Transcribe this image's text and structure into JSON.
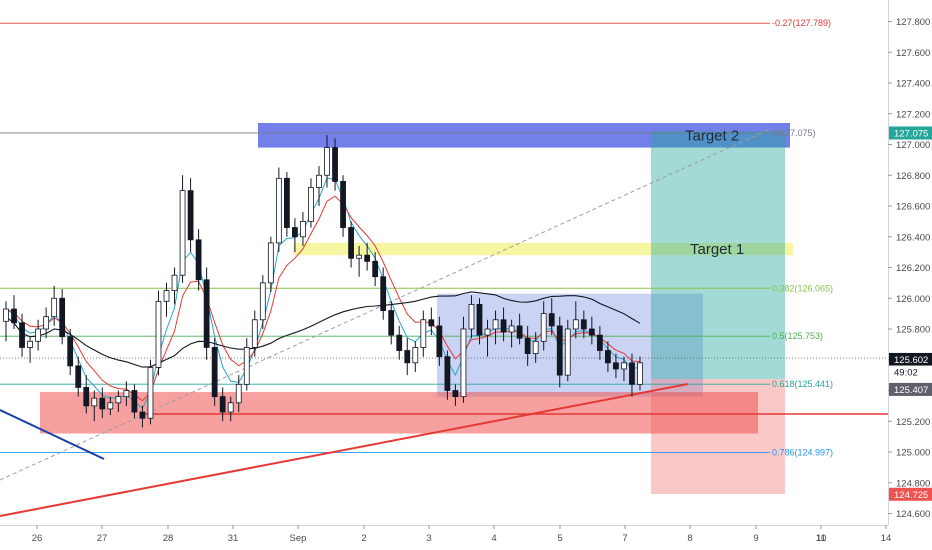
{
  "chart_data": {
    "type": "candlestick",
    "y_axis": {
      "position": "right",
      "ylim": [
        124.5,
        127.95
      ],
      "ticks": [
        "127.800",
        "127.600",
        "127.400",
        "127.200",
        "127.000",
        "126.800",
        "126.600",
        "126.400",
        "126.200",
        "126.000",
        "125.800",
        "125.600",
        "125.400",
        "125.200",
        "125.000",
        "124.800",
        "124.600"
      ],
      "tick_values": [
        127.8,
        127.6,
        127.4,
        127.2,
        127.0,
        126.8,
        126.6,
        126.4,
        126.2,
        126.0,
        125.8,
        125.6,
        125.4,
        125.2,
        125.0,
        124.8,
        124.6
      ]
    },
    "x_axis": {
      "tick_labels": [
        "26",
        "27",
        "28",
        "31",
        "Sep",
        "2",
        "3",
        "4",
        "5",
        "7",
        "8",
        "9",
        "10",
        "11",
        "14"
      ]
    },
    "price_badges": [
      {
        "text": "127.075",
        "value": 127.075,
        "color": "#26a69a",
        "text_color": "#ffffff"
      },
      {
        "text": "125.602",
        "value": 125.602,
        "color": "#131722",
        "text_color": "#ffffff"
      },
      {
        "text": "49:02",
        "value": 125.52,
        "color": "#ffffff",
        "text_color": "#131722"
      },
      {
        "text": "125.407",
        "value": 125.407,
        "color": "#5d606b",
        "text_color": "#ffffff"
      },
      {
        "text": "124.725",
        "value": 124.725,
        "color": "#ef5350",
        "text_color": "#ffffff"
      }
    ],
    "fib_levels": [
      {
        "label": "-0.27(127.789)",
        "value": 127.789,
        "color": "#e53935"
      },
      {
        "label": "0(127.075)",
        "value": 127.075,
        "color": "#787b86"
      },
      {
        "label": "0.382(126.065)",
        "value": 126.065,
        "color": "#8bc34a"
      },
      {
        "label": "0.5(125.753)",
        "value": 125.753,
        "color": "#4caf50"
      },
      {
        "label": "0.618(125.441)",
        "value": 125.441,
        "color": "#26a69a"
      },
      {
        "label": "0.786(124.997)",
        "value": 124.997,
        "color": "#2196f3"
      }
    ],
    "zones": [
      {
        "label": "Target 2",
        "low": 126.98,
        "high": 127.14,
        "color": "#3d4fe0"
      },
      {
        "label": "Target 1",
        "low": 126.28,
        "high": 126.36,
        "color": "#eeee55"
      },
      {
        "label": "",
        "low": 125.36,
        "high": 126.03,
        "color": "#8c9ee6"
      },
      {
        "label": "",
        "low": 125.12,
        "high": 125.39,
        "color": "#ef5350"
      }
    ],
    "current_price": 125.602,
    "candles": [
      [
        125.85,
        125.98,
        125.72,
        125.93
      ],
      [
        125.93,
        126.02,
        125.8,
        125.84
      ],
      [
        125.84,
        125.9,
        125.62,
        125.68
      ],
      [
        125.68,
        125.75,
        125.58,
        125.72
      ],
      [
        125.72,
        125.86,
        125.66,
        125.8
      ],
      [
        125.8,
        125.94,
        125.74,
        125.88
      ],
      [
        125.88,
        126.08,
        125.82,
        126.0
      ],
      [
        126.0,
        126.06,
        125.7,
        125.75
      ],
      [
        125.75,
        125.8,
        125.5,
        125.56
      ],
      [
        125.56,
        125.62,
        125.36,
        125.42
      ],
      [
        125.42,
        125.5,
        125.25,
        125.3
      ],
      [
        125.3,
        125.4,
        125.2,
        125.35
      ],
      [
        125.35,
        125.42,
        125.22,
        125.28
      ],
      [
        125.28,
        125.36,
        125.24,
        125.32
      ],
      [
        125.32,
        125.4,
        125.26,
        125.36
      ],
      [
        125.36,
        125.46,
        125.3,
        125.4
      ],
      [
        125.4,
        125.44,
        125.22,
        125.26
      ],
      [
        125.26,
        125.3,
        125.16,
        125.22
      ],
      [
        125.22,
        125.6,
        125.18,
        125.55
      ],
      [
        125.55,
        126.05,
        125.5,
        125.98
      ],
      [
        125.98,
        126.1,
        125.88,
        126.05
      ],
      [
        126.05,
        126.2,
        125.96,
        126.15
      ],
      [
        126.15,
        126.8,
        126.1,
        126.7
      ],
      [
        126.7,
        126.78,
        126.3,
        126.38
      ],
      [
        126.38,
        126.45,
        126.05,
        126.12
      ],
      [
        126.12,
        126.2,
        125.6,
        125.68
      ],
      [
        125.68,
        125.74,
        125.3,
        125.36
      ],
      [
        125.36,
        125.42,
        125.2,
        125.26
      ],
      [
        125.26,
        125.36,
        125.2,
        125.32
      ],
      [
        125.32,
        125.5,
        125.26,
        125.44
      ],
      [
        125.44,
        125.74,
        125.4,
        125.68
      ],
      [
        125.68,
        125.92,
        125.62,
        125.86
      ],
      [
        125.86,
        126.15,
        125.8,
        126.1
      ],
      [
        126.1,
        126.4,
        126.04,
        126.36
      ],
      [
        126.36,
        126.85,
        126.3,
        126.78
      ],
      [
        126.78,
        126.82,
        126.4,
        126.46
      ],
      [
        126.46,
        126.52,
        126.3,
        126.4
      ],
      [
        126.4,
        126.56,
        126.34,
        126.5
      ],
      [
        126.5,
        126.78,
        126.46,
        126.72
      ],
      [
        126.72,
        126.86,
        126.6,
        126.8
      ],
      [
        126.8,
        127.06,
        126.72,
        126.98
      ],
      [
        126.98,
        127.04,
        126.7,
        126.76
      ],
      [
        126.76,
        126.8,
        126.4,
        126.46
      ],
      [
        126.46,
        126.5,
        126.2,
        126.26
      ],
      [
        126.26,
        126.34,
        126.14,
        126.28
      ],
      [
        126.28,
        126.36,
        126.18,
        126.24
      ],
      [
        126.24,
        126.3,
        126.08,
        126.14
      ],
      [
        126.14,
        126.2,
        125.86,
        125.92
      ],
      [
        125.92,
        125.98,
        125.7,
        125.76
      ],
      [
        125.76,
        125.82,
        125.6,
        125.66
      ],
      [
        125.66,
        125.74,
        125.5,
        125.58
      ],
      [
        125.58,
        125.72,
        125.52,
        125.68
      ],
      [
        125.68,
        125.92,
        125.62,
        125.86
      ],
      [
        125.86,
        125.94,
        125.76,
        125.82
      ],
      [
        125.82,
        125.88,
        125.56,
        125.62
      ],
      [
        125.62,
        125.66,
        125.34,
        125.4
      ],
      [
        125.4,
        125.44,
        125.3,
        125.36
      ],
      [
        125.36,
        125.88,
        125.32,
        125.8
      ],
      [
        125.8,
        126.02,
        125.74,
        125.96
      ],
      [
        125.96,
        126.0,
        125.7,
        125.76
      ],
      [
        125.76,
        125.86,
        125.62,
        125.8
      ],
      [
        125.8,
        125.92,
        125.7,
        125.86
      ],
      [
        125.86,
        125.94,
        125.72,
        125.78
      ],
      [
        125.78,
        125.86,
        125.68,
        125.82
      ],
      [
        125.82,
        125.9,
        125.7,
        125.74
      ],
      [
        125.74,
        125.82,
        125.56,
        125.64
      ],
      [
        125.64,
        125.78,
        125.58,
        125.72
      ],
      [
        125.72,
        125.98,
        125.66,
        125.9
      ],
      [
        125.9,
        126.0,
        125.76,
        125.82
      ],
      [
        125.82,
        125.88,
        125.42,
        125.5
      ],
      [
        125.5,
        125.86,
        125.46,
        125.8
      ],
      [
        125.8,
        125.98,
        125.74,
        125.86
      ],
      [
        125.86,
        125.92,
        125.74,
        125.8
      ],
      [
        125.8,
        125.88,
        125.7,
        125.76
      ],
      [
        125.76,
        125.82,
        125.6,
        125.66
      ],
      [
        125.66,
        125.72,
        125.52,
        125.58
      ],
      [
        125.58,
        125.64,
        125.48,
        125.54
      ],
      [
        125.54,
        125.62,
        125.46,
        125.58
      ],
      [
        125.58,
        125.64,
        125.36,
        125.44
      ],
      [
        125.44,
        125.62,
        125.4,
        125.58
      ]
    ]
  }
}
